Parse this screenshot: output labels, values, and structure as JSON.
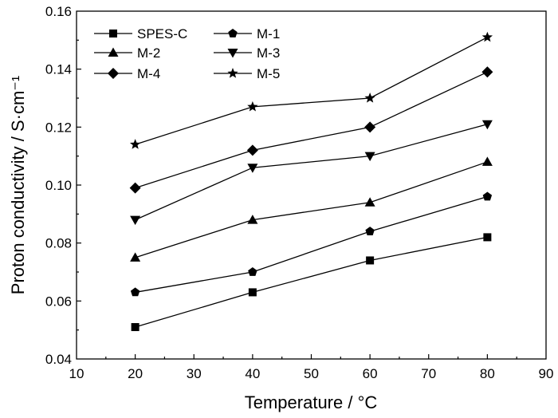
{
  "chart_data": {
    "type": "line",
    "xlabel": "Temperature / °C",
    "ylabel": "Proton conductivity / S·cm⁻¹",
    "xlim": [
      10,
      90
    ],
    "ylim": [
      0.04,
      0.16
    ],
    "x_ticks": [
      "10",
      "20",
      "30",
      "40",
      "50",
      "60",
      "70",
      "80",
      "90"
    ],
    "y_ticks": [
      "0.04",
      "0.06",
      "0.08",
      "0.10",
      "0.12",
      "0.14",
      "0.16"
    ],
    "grid": false,
    "legend_position": "top-left",
    "x": [
      20,
      40,
      60,
      80
    ],
    "series": [
      {
        "name": "SPES-C",
        "marker": "square",
        "values": [
          0.051,
          0.063,
          0.074,
          0.082
        ]
      },
      {
        "name": "M-1",
        "marker": "pentagon",
        "values": [
          0.063,
          0.07,
          0.084,
          0.096
        ]
      },
      {
        "name": "M-2",
        "marker": "triangle-up",
        "values": [
          0.075,
          0.088,
          0.094,
          0.108
        ]
      },
      {
        "name": "M-3",
        "marker": "triangle-down",
        "values": [
          0.088,
          0.106,
          0.11,
          0.121
        ]
      },
      {
        "name": "M-4",
        "marker": "diamond",
        "values": [
          0.099,
          0.112,
          0.12,
          0.139
        ]
      },
      {
        "name": "M-5",
        "marker": "star",
        "values": [
          0.114,
          0.127,
          0.13,
          0.151
        ]
      }
    ]
  }
}
